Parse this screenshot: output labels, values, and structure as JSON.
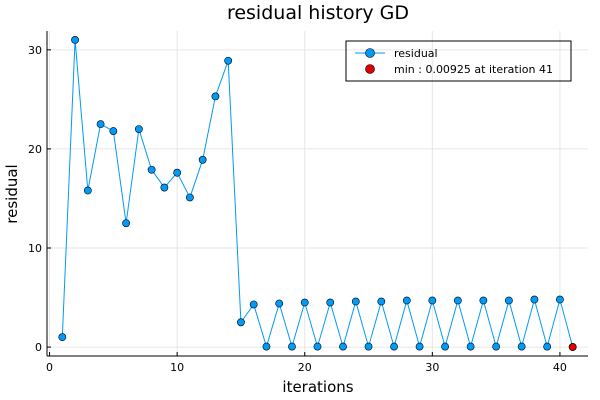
{
  "chart_data": {
    "type": "line",
    "title": "residual history GD",
    "xlabel": "iterations",
    "ylabel": "residual",
    "xlim": [
      -0.2,
      42.2
    ],
    "ylim": [
      -0.9,
      31.9
    ],
    "xticks": [
      0,
      10,
      20,
      30,
      40
    ],
    "yticks": [
      0,
      10,
      20,
      30
    ],
    "grid": true,
    "legend_position": "top-right",
    "series": [
      {
        "name": "residual",
        "color": "#009af9",
        "x": [
          1,
          2,
          3,
          4,
          5,
          6,
          7,
          8,
          9,
          10,
          11,
          12,
          13,
          14,
          15,
          16,
          17,
          18,
          19,
          20,
          21,
          22,
          23,
          24,
          25,
          26,
          27,
          28,
          29,
          30,
          31,
          32,
          33,
          34,
          35,
          36,
          37,
          38,
          39,
          40,
          41
        ],
        "y": [
          1.0,
          31.0,
          15.8,
          22.5,
          21.8,
          12.5,
          22.0,
          17.9,
          16.1,
          17.6,
          15.1,
          18.9,
          25.3,
          28.9,
          2.5,
          4.3,
          0.05,
          4.4,
          0.05,
          4.5,
          0.05,
          4.5,
          0.05,
          4.6,
          0.05,
          4.6,
          0.05,
          4.7,
          0.05,
          4.7,
          0.05,
          4.7,
          0.05,
          4.7,
          0.05,
          4.7,
          0.05,
          4.8,
          0.05,
          4.8,
          0.00925
        ]
      },
      {
        "name": "min : 0.00925 at iteration 41",
        "color": "#e00000",
        "x": [
          41
        ],
        "y": [
          0.00925
        ]
      }
    ]
  }
}
